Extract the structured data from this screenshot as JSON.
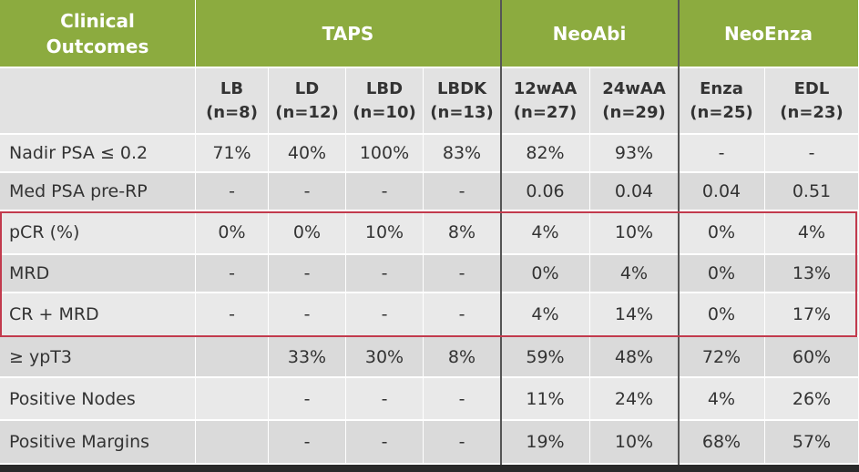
{
  "table": {
    "groups": [
      "Clinical Outcomes",
      "TAPS",
      "NeoAbi",
      "NeoEnza"
    ],
    "columns": [
      {
        "name": "LB",
        "n": "(n=8)"
      },
      {
        "name": "LD",
        "n": "(n=12)"
      },
      {
        "name": "LBD",
        "n": "(n=10)"
      },
      {
        "name": "LBDK",
        "n": "(n=13)"
      },
      {
        "name": "12wAA",
        "n": "(n=27)"
      },
      {
        "name": "24wAA",
        "n": "(n=29)"
      },
      {
        "name": "Enza",
        "n": "(n=25)"
      },
      {
        "name": "EDL",
        "n": "(n=23)"
      }
    ],
    "rows": [
      {
        "label": "Nadir PSA ≤ 0.2",
        "cells": [
          "71%",
          "40%",
          "100%",
          "83%",
          "82%",
          "93%",
          "-",
          "-"
        ]
      },
      {
        "label": "Med PSA pre-RP",
        "cells": [
          "-",
          "-",
          "-",
          "-",
          "0.06",
          "0.04",
          "0.04",
          "0.51"
        ]
      },
      {
        "label": "pCR (%)",
        "cells": [
          "0%",
          "0%",
          "10%",
          "8%",
          "4%",
          "10%",
          "0%",
          "4%"
        ]
      },
      {
        "label": "MRD",
        "cells": [
          "-",
          "-",
          "-",
          "-",
          "0%",
          "4%",
          "0%",
          "13%"
        ]
      },
      {
        "label": "CR + MRD",
        "cells": [
          "-",
          "-",
          "-",
          "-",
          "4%",
          "14%",
          "0%",
          "17%"
        ]
      },
      {
        "label": "≥ ypT3",
        "cells": [
          null,
          "33%",
          "30%",
          "8%",
          "59%",
          "48%",
          "72%",
          "60%"
        ]
      },
      {
        "label": "Positive Nodes",
        "cells": [
          null,
          "-",
          "-",
          "-",
          "11%",
          "24%",
          "4%",
          "26%"
        ]
      },
      {
        "label": "Positive  Margins",
        "cells": [
          null,
          "-",
          "-",
          "-",
          "19%",
          "10%",
          "68%",
          "57%"
        ]
      }
    ]
  }
}
